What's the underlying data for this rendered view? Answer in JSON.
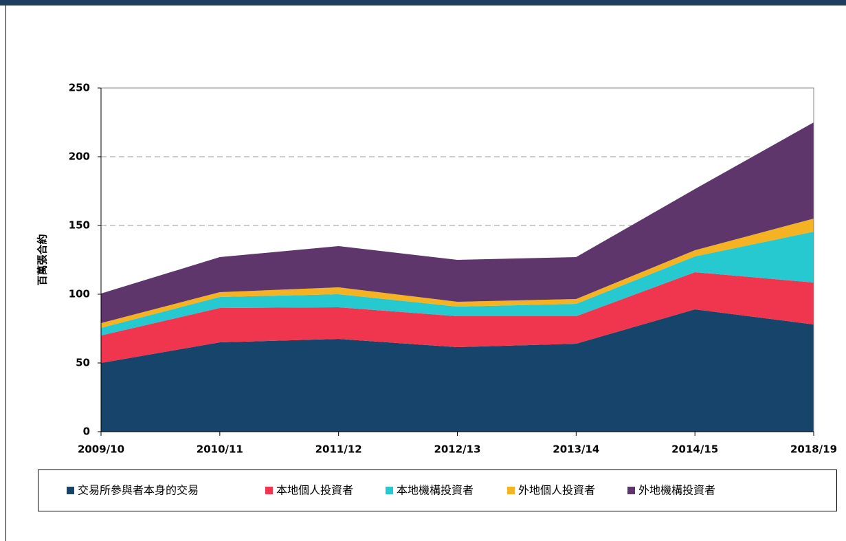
{
  "chart_data": {
    "type": "stacked_area",
    "y_label": "百萬張合約",
    "categories": [
      "2009/10",
      "2010/11",
      "2011/12",
      "2012/13",
      "2013/14",
      "2014/15",
      "2018/19"
    ],
    "series": [
      {
        "name": "交易所參與者本身的交易",
        "color": "#17446b",
        "values": [
          50,
          65,
          67.5,
          61.5,
          64,
          89,
          78
        ]
      },
      {
        "name": "本地個人投資者",
        "color": "#f0364e",
        "values": [
          20,
          25,
          23,
          22.5,
          20,
          27,
          30.5
        ]
      },
      {
        "name": "本地機構投資者",
        "color": "#26c9d0",
        "values": [
          5.5,
          8,
          9.5,
          7,
          9,
          11.5,
          37
        ]
      },
      {
        "name": "外地個人投資者",
        "color": "#f5b323",
        "values": [
          3.5,
          3.5,
          5,
          3.5,
          3.5,
          4.5,
          9.5
        ]
      },
      {
        "name": "外地機構投資者",
        "color": "#5e366b",
        "values": [
          21.5,
          25.5,
          30,
          30.5,
          30.5,
          44.5,
          70
        ]
      }
    ],
    "ylim": [
      0,
      250
    ],
    "yticks": [
      0,
      50,
      100,
      150,
      200,
      250
    ],
    "grid": true
  }
}
